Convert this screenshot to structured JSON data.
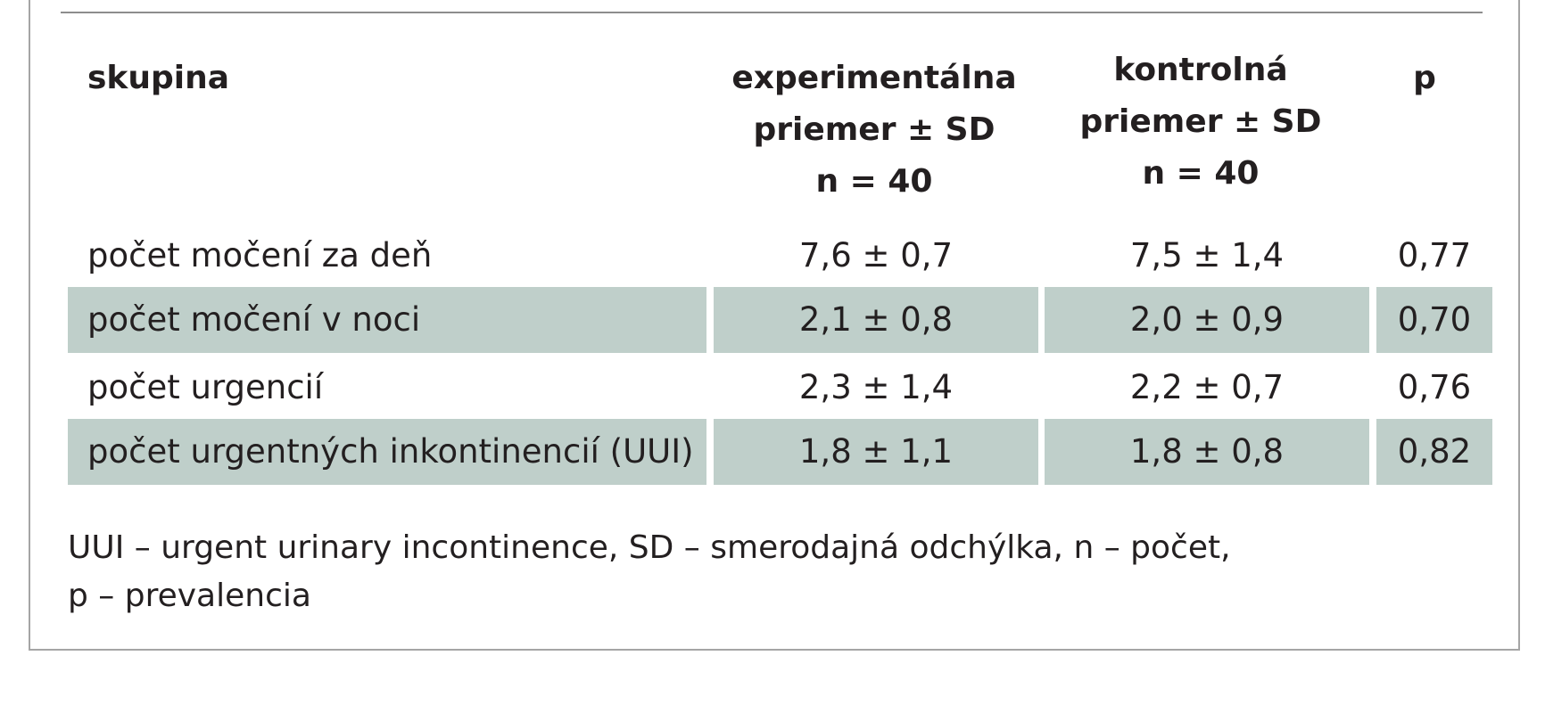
{
  "table": {
    "headers": {
      "group": "skupina",
      "experimental": [
        "experimentálna",
        "priemer ± SD",
        "n = 40"
      ],
      "control": [
        "kontrolná",
        "priemer ± SD",
        "n = 40"
      ],
      "p": "p"
    },
    "rows": [
      {
        "label": "počet močení za deň",
        "experimental": "7,6 ± 0,7",
        "control": "7,5 ± 1,4",
        "p": "0,77",
        "shaded": false
      },
      {
        "label": "počet močení v noci",
        "experimental": "2,1 ± 0,8",
        "control": "2,0 ± 0,9",
        "p": "0,70",
        "shaded": true
      },
      {
        "label": "počet urgencií",
        "experimental": "2,3 ± 1,4",
        "control": "2,2 ± 0,7",
        "p": "0,76",
        "shaded": false
      },
      {
        "label": "počet urgentných inkontinencií (UUI)",
        "experimental": "1,8 ± 1,1",
        "control": "1,8 ± 0,8",
        "p": "0,82",
        "shaded": true
      }
    ]
  },
  "footnote": {
    "line1": "UUI – urgent urinary incontinence, SD – smerodajná odchýlka, n – počet,",
    "line2": "p – prevalencia"
  },
  "colors": {
    "shaded_row": "#bfcfca",
    "frame_border": "#a5a5a5"
  }
}
